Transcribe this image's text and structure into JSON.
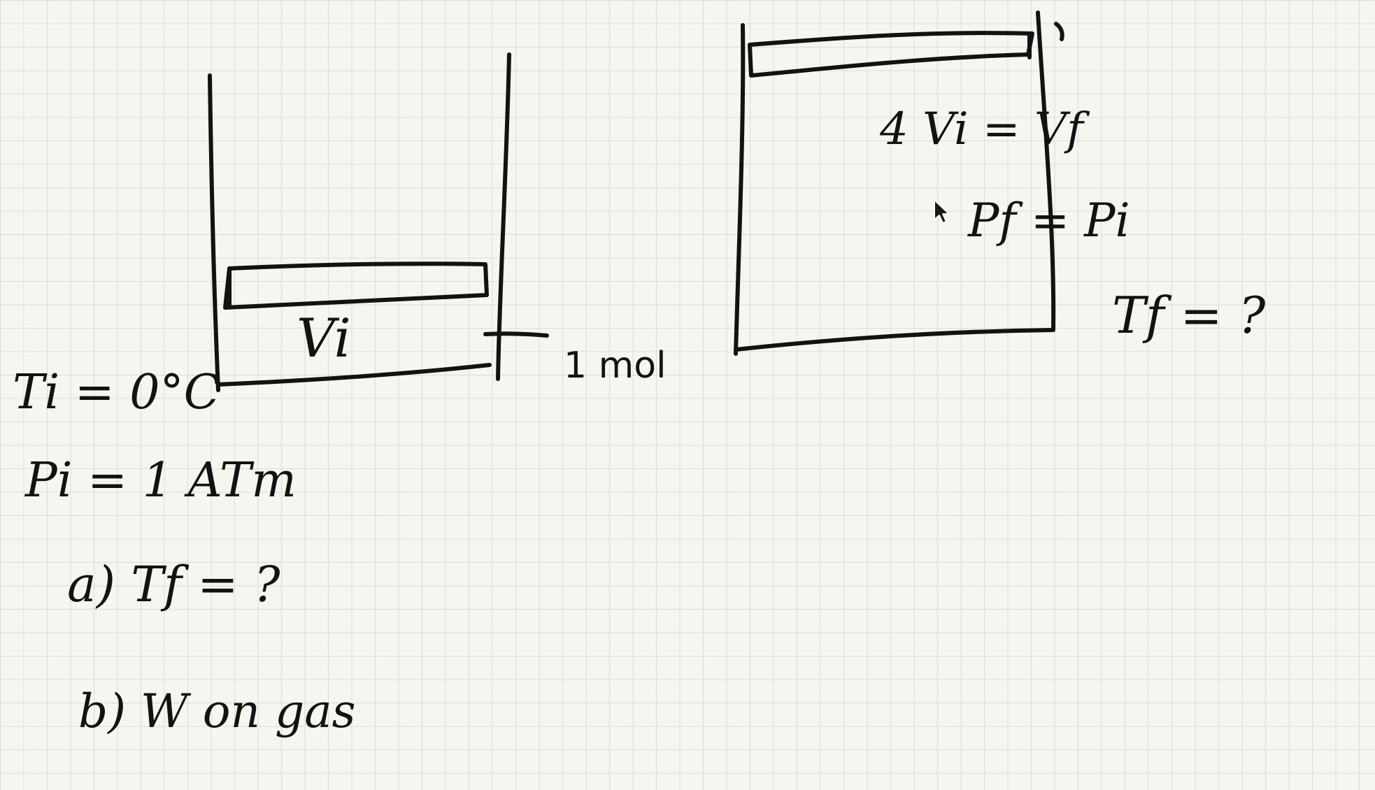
{
  "left_cylinder": {
    "volume_label": "Vi",
    "amount_label": "1 mol"
  },
  "given": {
    "temperature": "Ti = 0°C",
    "pressure": "Pi = 1 ATm"
  },
  "questions": {
    "a": "a)  Tf = ?",
    "b": "b)  W on gas"
  },
  "right_cylinder": {
    "volume_relation": "4 Vi = Vf",
    "pressure_relation": "Pf = Pi",
    "temperature_question": "Tf = ?"
  },
  "icons": {
    "cursor": "mouse-pointer-icon"
  }
}
